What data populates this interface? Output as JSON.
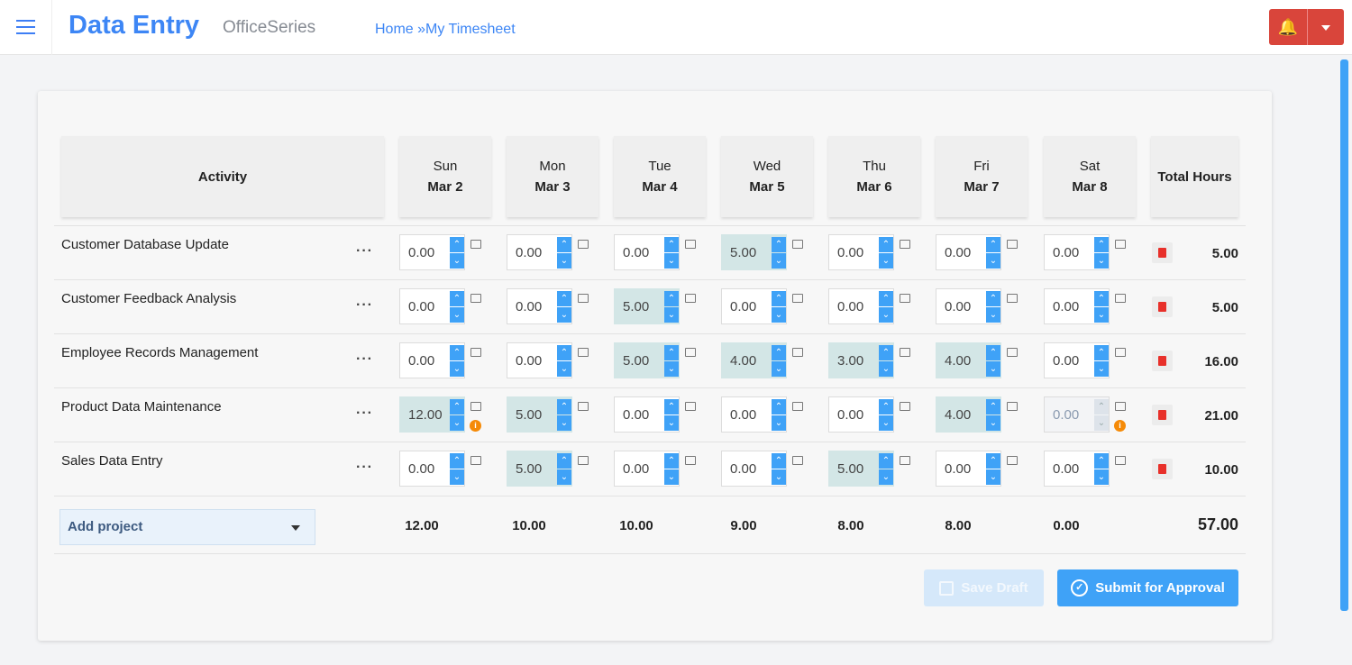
{
  "header": {
    "title": "Data Entry",
    "subtitle": "OfficeSeries",
    "breadcrumb": [
      "Home",
      "My Timesheet"
    ],
    "breadcrumb_sep": "»"
  },
  "table": {
    "activity_header": "Activity",
    "total_header": "Total Hours",
    "days": [
      {
        "day": "Sun",
        "date": "Mar 2"
      },
      {
        "day": "Mon",
        "date": "Mar 3"
      },
      {
        "day": "Tue",
        "date": "Mar 4"
      },
      {
        "day": "Wed",
        "date": "Mar 5"
      },
      {
        "day": "Thu",
        "date": "Mar 6"
      },
      {
        "day": "Fri",
        "date": "Mar 7"
      },
      {
        "day": "Sat",
        "date": "Mar 8"
      }
    ],
    "rows": [
      {
        "activity": "Customer Database Update",
        "hours": [
          "0.00",
          "0.00",
          "0.00",
          "5.00",
          "0.00",
          "0.00",
          "0.00"
        ],
        "total": "5.00"
      },
      {
        "activity": "Customer Feedback Analysis",
        "hours": [
          "0.00",
          "0.00",
          "5.00",
          "0.00",
          "0.00",
          "0.00",
          "0.00"
        ],
        "total": "5.00"
      },
      {
        "activity": "Employee Records Management",
        "hours": [
          "0.00",
          "0.00",
          "5.00",
          "4.00",
          "3.00",
          "4.00",
          "0.00"
        ],
        "total": "16.00"
      },
      {
        "activity": "Product Data Maintenance",
        "hours": [
          "12.00",
          "5.00",
          "0.00",
          "0.00",
          "0.00",
          "4.00",
          "0.00"
        ],
        "total": "21.00",
        "warnings": [
          0,
          6
        ],
        "disabled": [
          6
        ]
      },
      {
        "activity": "Sales Data Entry",
        "hours": [
          "0.00",
          "5.00",
          "0.00",
          "0.00",
          "5.00",
          "0.00",
          "0.00"
        ],
        "total": "10.00"
      }
    ],
    "day_totals": [
      "12.00",
      "10.00",
      "10.00",
      "9.00",
      "8.00",
      "8.00",
      "0.00"
    ],
    "grand_total": "57.00",
    "more_label": "···"
  },
  "add_project": {
    "label": "Add project"
  },
  "buttons": {
    "save_draft": "Save Draft",
    "submit": "Submit for Approval"
  },
  "colors": {
    "accent": "#3fa2f7",
    "brand": "#3d86f5",
    "alert": "#d9453b",
    "highlight": "#d3e6e6"
  }
}
